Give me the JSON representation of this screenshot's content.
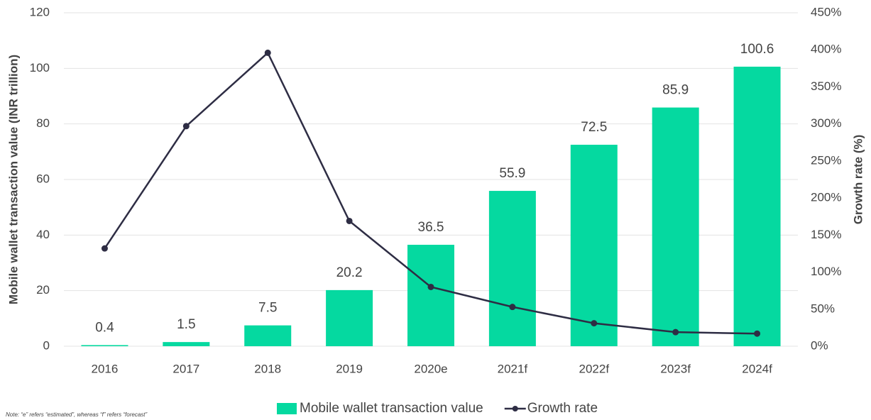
{
  "chart_data": {
    "type": "bar_line",
    "categories": [
      "2016",
      "2017",
      "2018",
      "2019",
      "2020e",
      "2021f",
      "2022f",
      "2023f",
      "2024f"
    ],
    "series": [
      {
        "name": "Mobile wallet transaction value",
        "type": "bar",
        "color": "#05d9a0",
        "values": [
          0.4,
          1.5,
          7.5,
          20.2,
          36.5,
          55.9,
          72.5,
          85.9,
          100.6
        ]
      },
      {
        "name": "Growth rate",
        "type": "line",
        "axis": "y2",
        "color": "#2e2d44",
        "values": [
          132,
          297,
          396,
          169,
          80,
          53,
          31,
          19,
          17
        ]
      }
    ],
    "y_label": "Mobile wallet transaction value (INR trillion)",
    "y2_label": "Growth rate (%)",
    "ylim": [
      0,
      120
    ],
    "yticks": [
      0,
      20,
      40,
      60,
      80,
      100,
      120
    ],
    "y2lim": [
      0,
      450
    ],
    "y2ticks": [
      {
        "value": 0,
        "label": "0%"
      },
      {
        "value": 50,
        "label": "50%"
      },
      {
        "value": 100,
        "label": "100%"
      },
      {
        "value": 150,
        "label": "150%"
      },
      {
        "value": 200,
        "label": "200%"
      },
      {
        "value": 250,
        "label": "250%"
      },
      {
        "value": 300,
        "label": "300%"
      },
      {
        "value": 350,
        "label": "350%"
      },
      {
        "value": 400,
        "label": "400%"
      },
      {
        "value": 450,
        "label": "450%"
      }
    ],
    "grid": true,
    "note": "Note: “e” refers “estimated”, whereas “f” refers “forecast”"
  }
}
